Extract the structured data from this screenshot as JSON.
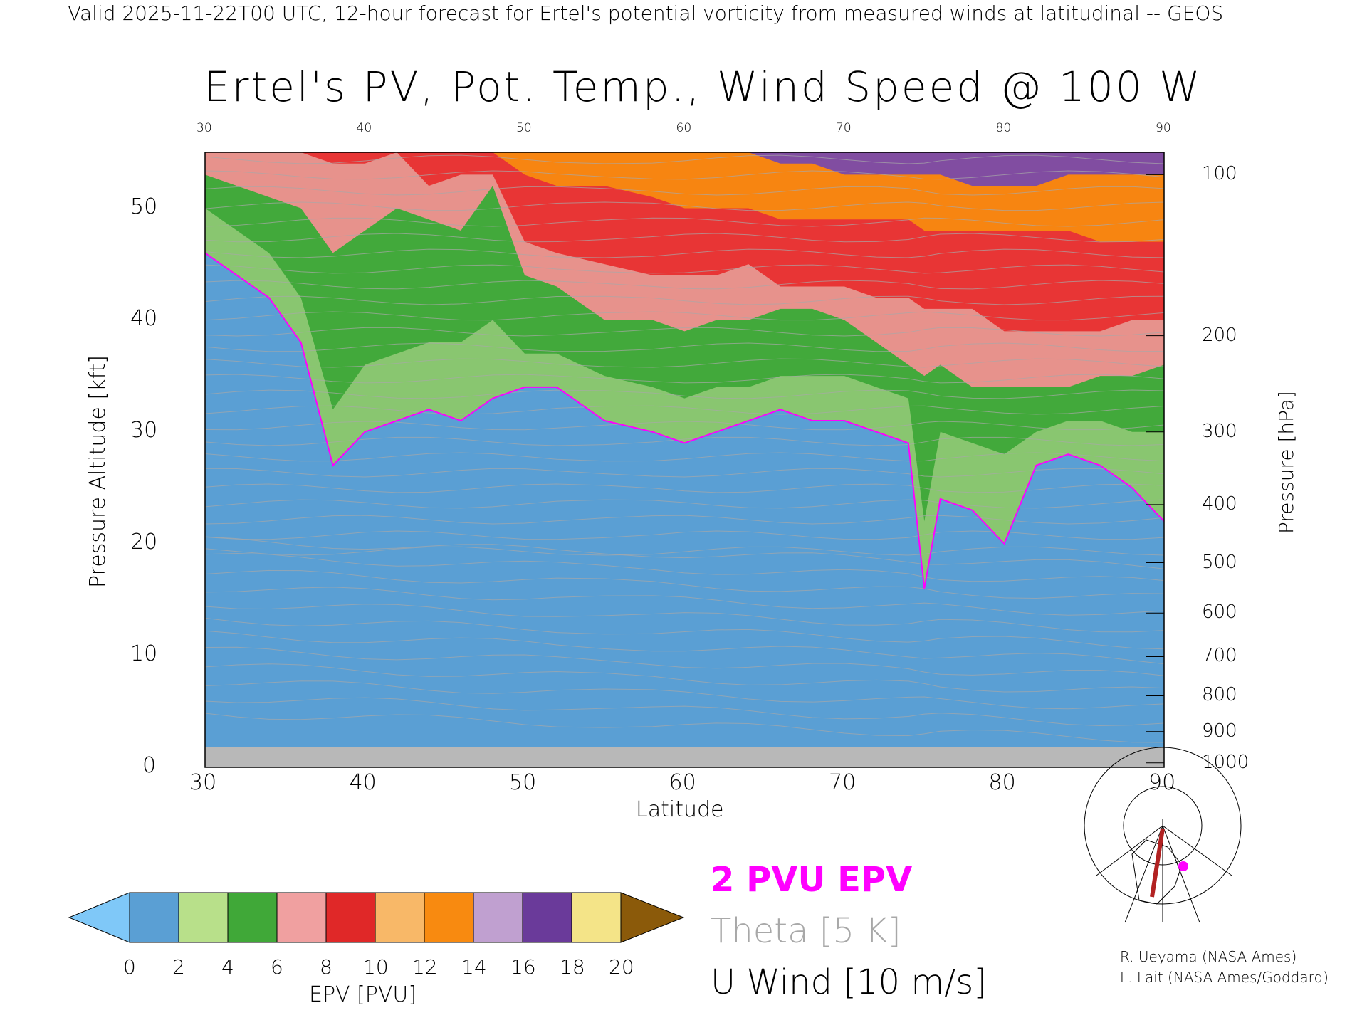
{
  "header": {
    "caption": "Valid 2025-11-22T00 UTC, 12-hour forecast for Ertel's potential vorticity from measured winds at latitudinal -- GEOS"
  },
  "chart_data": {
    "type": "heatmap",
    "title": "Ertel's PV, Pot. Temp., Wind Speed @ 100 W",
    "xlabel": "Latitude",
    "ylabel": "Pressure Altitude [kft]",
    "y2label": "Pressure [hPa]",
    "xlim": [
      30,
      90
    ],
    "ylim": [
      0,
      55
    ],
    "xticks": [
      "30",
      "40",
      "50",
      "60",
      "70",
      "80",
      "90"
    ],
    "yticks": [
      "0",
      "10",
      "20",
      "30",
      "40",
      "50"
    ],
    "y2ticks": [
      {
        "label": "100",
        "kft": 53
      },
      {
        "label": "200",
        "kft": 38.6
      },
      {
        "label": "300",
        "kft": 30
      },
      {
        "label": "400",
        "kft": 23.5
      },
      {
        "label": "500",
        "kft": 18.3
      },
      {
        "label": "600",
        "kft": 13.8
      },
      {
        "label": "700",
        "kft": 9.9
      },
      {
        "label": "800",
        "kft": 6.4
      },
      {
        "label": "900",
        "kft": 3.2
      },
      {
        "label": "1000",
        "kft": 0.4
      }
    ],
    "lat": [
      30,
      32,
      34,
      36,
      38,
      40,
      42,
      44,
      46,
      48,
      50,
      52,
      55,
      58,
      60,
      62,
      64,
      66,
      68,
      70,
      72,
      74,
      75,
      76,
      78,
      80,
      82,
      84,
      86,
      88,
      90
    ],
    "pv2_kft": [
      46,
      44,
      42,
      38,
      27,
      30,
      31,
      32,
      31,
      33,
      34,
      34,
      31,
      30,
      29,
      30,
      31,
      32,
      31,
      31,
      30,
      29,
      16,
      24,
      23,
      20,
      27,
      28,
      27,
      25,
      22
    ],
    "pv4_kft": [
      50,
      48,
      46,
      42,
      32,
      36,
      37,
      38,
      38,
      40,
      37,
      37,
      35,
      34,
      33,
      34,
      34,
      35,
      35,
      35,
      34,
      33,
      22,
      30,
      29,
      28,
      30,
      31,
      31,
      30,
      30
    ],
    "pv6_kft": [
      53,
      52,
      51,
      50,
      46,
      48,
      50,
      49,
      48,
      52,
      44,
      43,
      40,
      40,
      39,
      40,
      40,
      41,
      41,
      40,
      38,
      36,
      35,
      36,
      34,
      34,
      34,
      34,
      35,
      35,
      36
    ],
    "pv8_kft": [
      55,
      55,
      55,
      55,
      54,
      54,
      55,
      52,
      53,
      53,
      47,
      46,
      45,
      44,
      44,
      44,
      45,
      43,
      43,
      43,
      42,
      42,
      41,
      41,
      41,
      39,
      39,
      39,
      39,
      40,
      40
    ],
    "pv12_kft": [
      56,
      56,
      56,
      56,
      56,
      56,
      56,
      56,
      56,
      55,
      53,
      52,
      52,
      51,
      50,
      50,
      50,
      49,
      49,
      49,
      49,
      49,
      48,
      48,
      48,
      48,
      48,
      48,
      47,
      47,
      47
    ],
    "pv16_kft": [
      57,
      57,
      57,
      57,
      57,
      57,
      57,
      57,
      57,
      57,
      56,
      55,
      56,
      56,
      56,
      56,
      55,
      54,
      54,
      53,
      53,
      53,
      53,
      53,
      52,
      52,
      52,
      53,
      53,
      53,
      53
    ],
    "colorbar": {
      "label": "EPV [PVU]",
      "ticks": [
        "0",
        "2",
        "4",
        "6",
        "8",
        "10",
        "12",
        "14",
        "16",
        "18",
        "20"
      ],
      "colors": [
        "#7fc8f8",
        "#5a9fd4",
        "#b8e08a",
        "#40a838",
        "#f0a0a0",
        "#e02828",
        "#f8b868",
        "#f88a10",
        "#c0a0d0",
        "#6a3a9a",
        "#f4e488",
        "#8b5a0a"
      ]
    },
    "legend": {
      "pv": "2 PVU EPV",
      "theta": "Theta [5 K]",
      "wind": "U Wind [10 m/s]",
      "pv_color": "#ff00ff",
      "theta_color": "#a8a8a8"
    }
  },
  "credits": {
    "line1": "R. Ueyama (NASA Ames)",
    "line2": "L. Lait (NASA Ames/Goddard)"
  }
}
